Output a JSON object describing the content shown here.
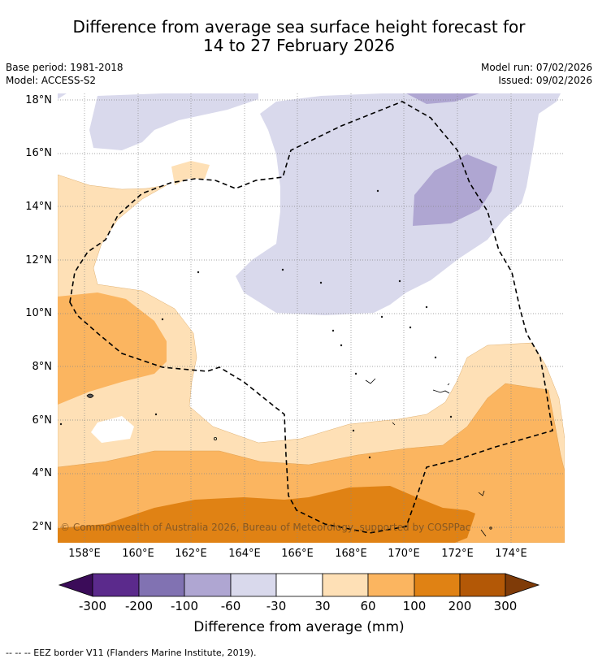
{
  "title_line1": "Difference from average sea surface height forecast for",
  "title_line2": "14 to 27 February 2026",
  "meta": {
    "base_period": "Base period: 1981-2018",
    "model": "Model: ACCESS-S2",
    "model_run": "Model run: 07/02/2026",
    "issued": "Issued: 09/02/2026"
  },
  "map": {
    "lat_labels": [
      "18°N",
      "16°N",
      "14°N",
      "12°N",
      "10°N",
      "8°N",
      "6°N",
      "4°N",
      "2°N"
    ],
    "lon_labels": [
      "158°E",
      "160°E",
      "162°E",
      "164°E",
      "166°E",
      "168°E",
      "170°E",
      "172°E",
      "174°E"
    ],
    "copyright": "© Commonwealth of Australia 2026, Bureau of Meteorology, supported by COSPPac"
  },
  "colorbar": {
    "title": "Difference from average (mm)",
    "tick_labels": [
      "-300",
      "-200",
      "-100",
      "-60",
      "-30",
      "30",
      "60",
      "100",
      "200",
      "300"
    ],
    "colors": [
      "#3b0c59",
      "#5b2a8c",
      "#8172b2",
      "#afa6d2",
      "#d9d9ec",
      "#ffffff",
      "#fee0b6",
      "#fbb560",
      "#e08214",
      "#b35806",
      "#7f3b08"
    ]
  },
  "footnote": "--  --  -- EEZ border V11 (Flanders Marine Institute, 2019)."
}
